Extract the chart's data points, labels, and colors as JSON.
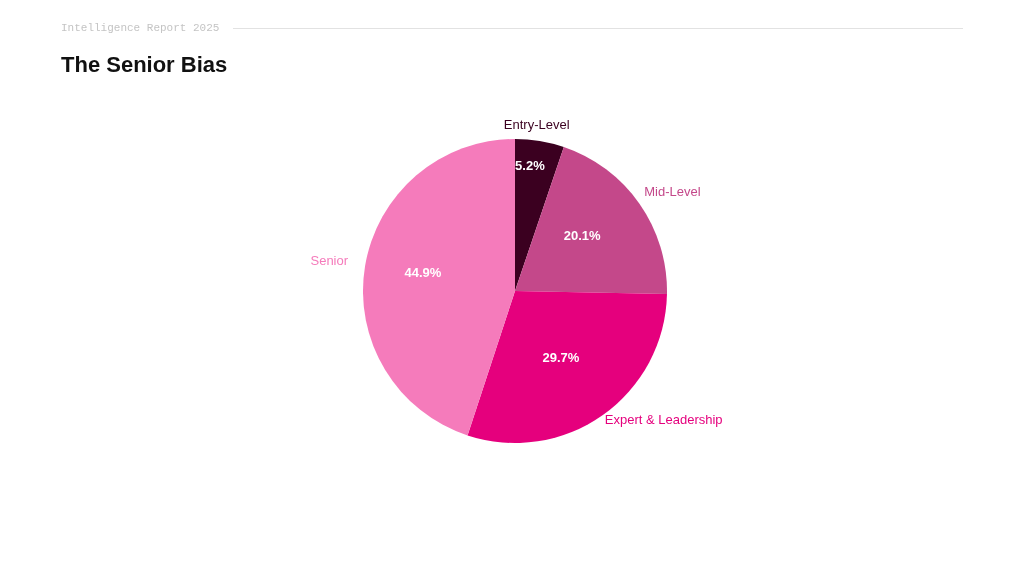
{
  "chart_data": {
    "type": "pie",
    "title": "The Senior Bias",
    "subtitle": "Intelligence Report 2025",
    "categories": [
      "Entry-Level",
      "Mid-Level",
      "Expert & Leadership",
      "Senior"
    ],
    "values": [
      5.2,
      20.1,
      29.7,
      44.9
    ],
    "colors": [
      "#3b0020",
      "#c4488a",
      "#e5007d",
      "#f57bbb"
    ],
    "value_labels": [
      "5.2%",
      "20.1%",
      "29.7%",
      "44.9%"
    ]
  }
}
